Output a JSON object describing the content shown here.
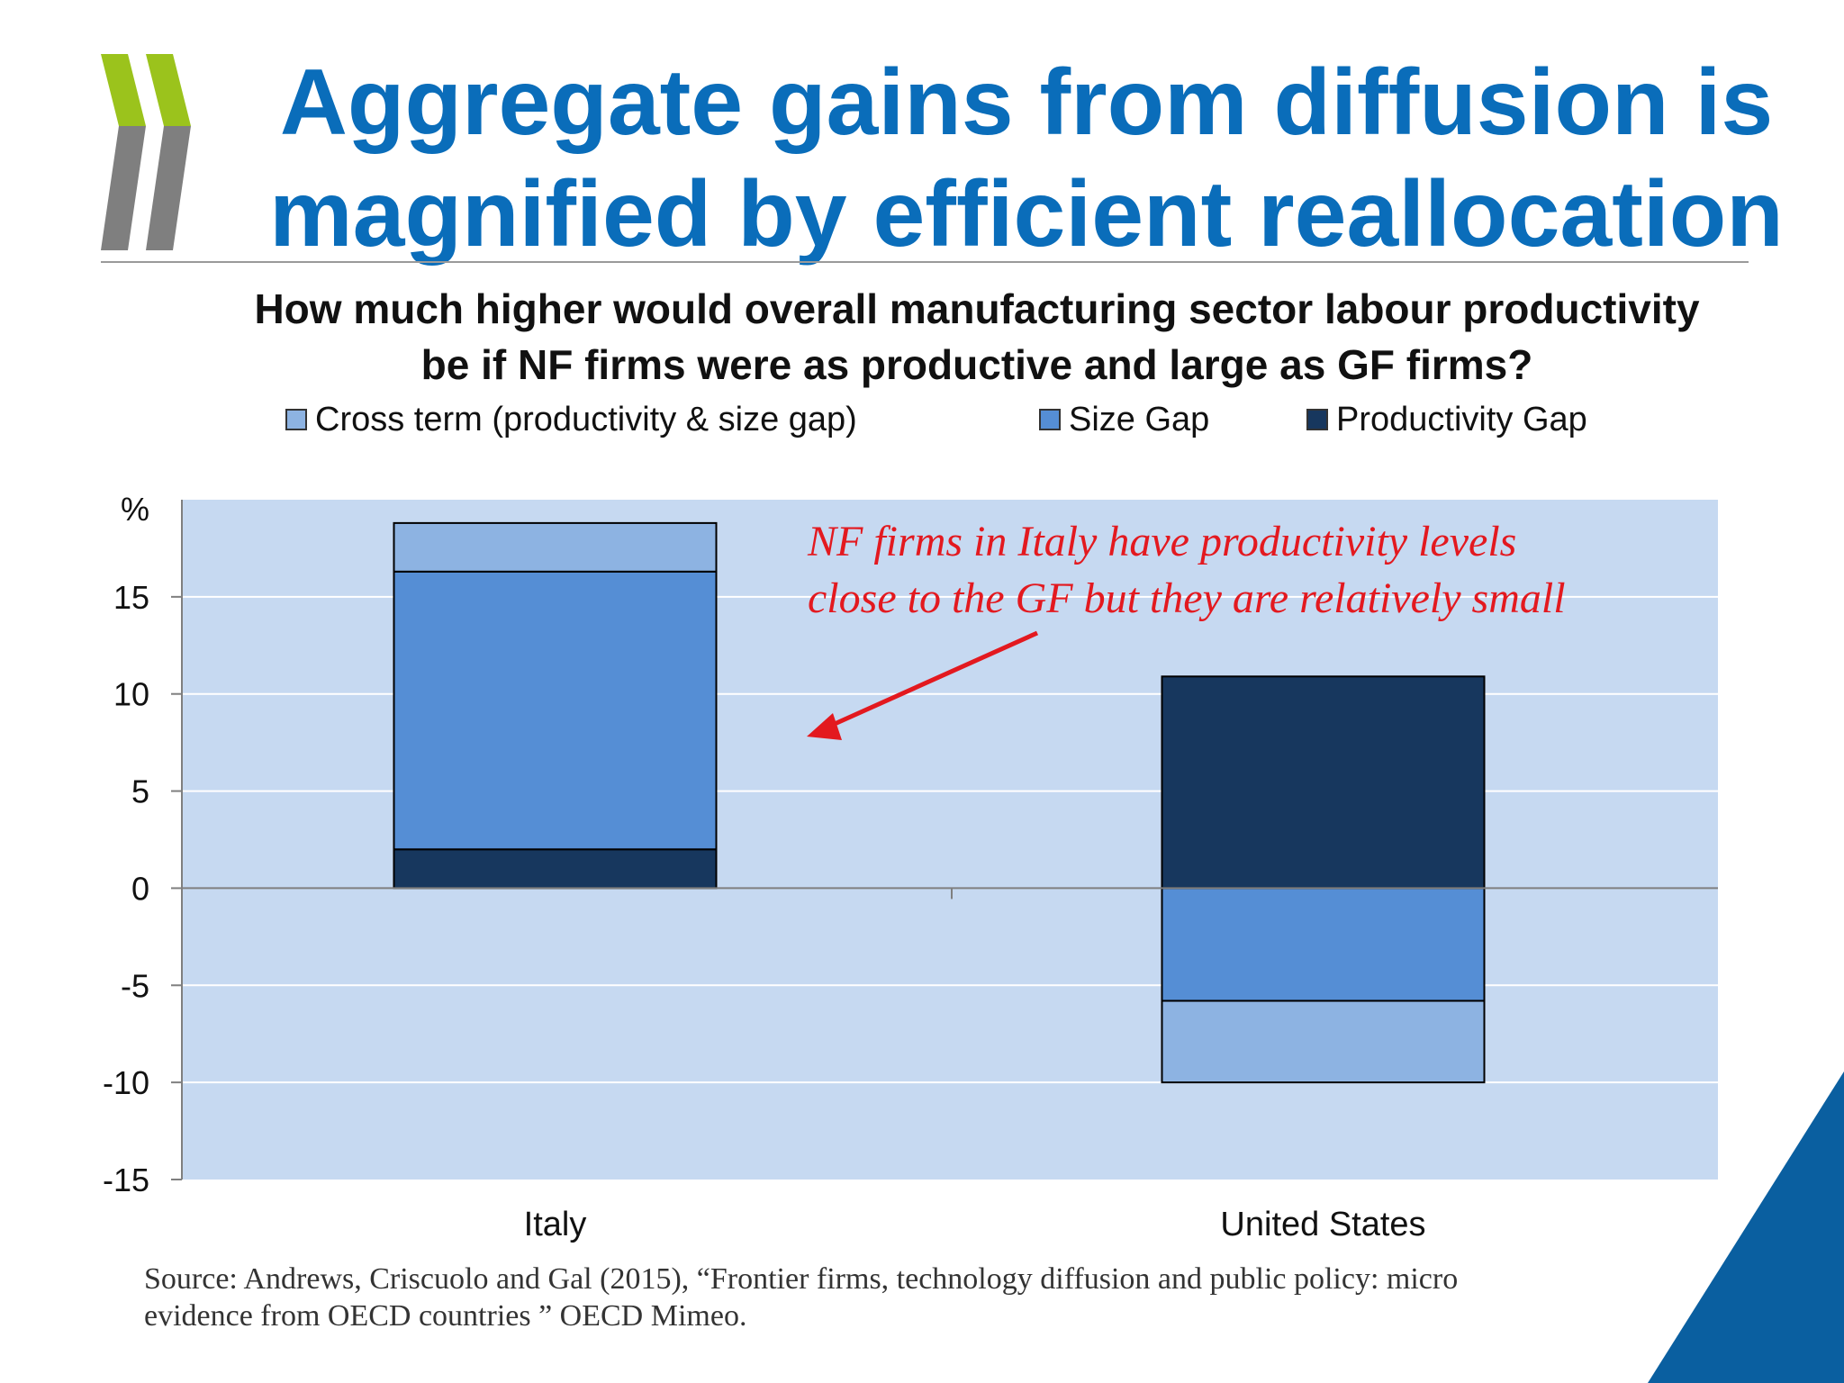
{
  "slide": {
    "title_line1": "Aggregate gains from diffusion is",
    "title_line2": "magnified by efficient reallocation",
    "subtitle_line1": "How much higher would overall manufacturing sector labour productivity",
    "subtitle_line2": "be if NF firms were as productive and large as GF firms?",
    "source_line1": "Source: Andrews, Criscuolo and Gal (2015), “Frontier firms, technology diffusion and public policy: micro",
    "source_line2": "evidence from OECD countries ” OECD Mimeo."
  },
  "colors": {
    "title": "#0a6dba",
    "plot_bg": "#c6d9f1",
    "cross_term": "#8db3e2",
    "size_gap": "#558ed5",
    "productivity_gap": "#17375e",
    "annotation": "#e3191f",
    "logo_green": "#9bc31c",
    "logo_grey": "#7f7f7f",
    "corner_blue": "#0a5fa0"
  },
  "chart_data": {
    "type": "bar",
    "stacked": true,
    "y_unit": "%",
    "categories": [
      "Italy",
      "United States"
    ],
    "series": [
      {
        "name": "Cross term (productivity & size gap)",
        "values": [
          2.5,
          -4.2
        ]
      },
      {
        "name": "Size Gap",
        "values": [
          14.3,
          -5.8
        ]
      },
      {
        "name": "Productivity Gap",
        "values": [
          2.0,
          10.9
        ]
      }
    ],
    "ylim": [
      -15,
      20
    ],
    "yticks": [
      -15,
      -10,
      -5,
      0,
      5,
      10,
      15
    ],
    "grid": true,
    "legend_position": "top",
    "annotation": {
      "line1": "NF firms in Italy have productivity levels",
      "line2": "close to the GF but they are relatively small"
    }
  }
}
